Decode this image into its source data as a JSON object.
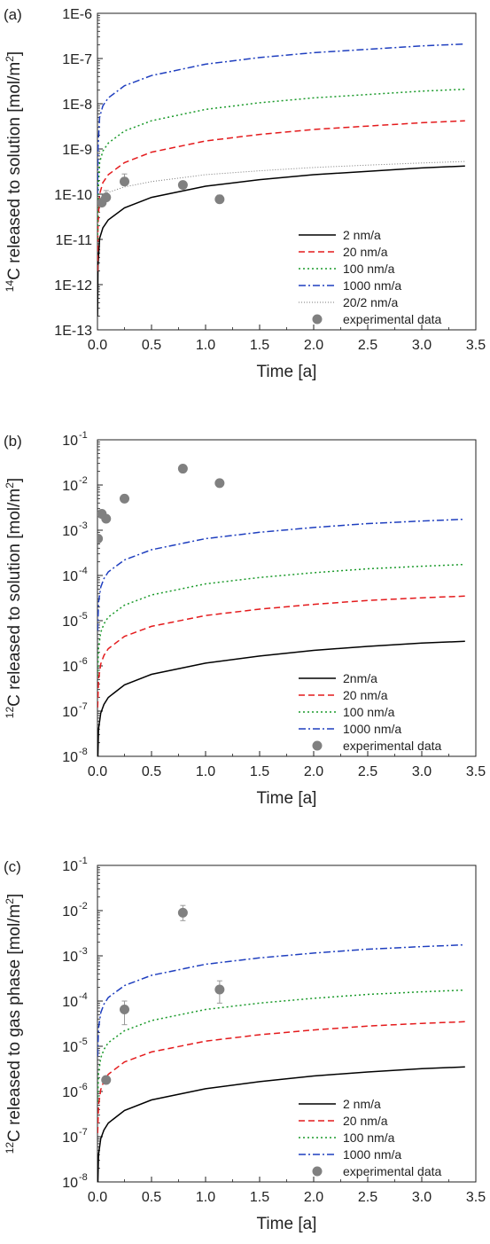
{
  "figure": {
    "panels": [
      "(a)",
      "(b)",
      "(c)"
    ]
  },
  "chart_data": [
    {
      "type": "line",
      "panel_label": "(a)",
      "xlabel": "Time [a]",
      "ylabel_pre": "",
      "ylabel_sup": "14",
      "ylabel_main": "C released to solution [mol/m",
      "ylabel_sup2": "2",
      "ylabel_post": "]",
      "xlim": [
        0,
        3.5
      ],
      "ylim": [
        1e-13,
        1e-06
      ],
      "yscale": "log",
      "tick_style": "E",
      "x_ticks": [
        "0.0",
        "0.5",
        "1.0",
        "1.5",
        "2.0",
        "2.5",
        "3.0",
        "3.5"
      ],
      "y_ticks": [
        "1E-13",
        "1E-12",
        "1E-11",
        "1E-10",
        "1E-9",
        "1E-8",
        "1E-7",
        "1E-6"
      ],
      "legend_position": "lower-right",
      "series": [
        {
          "name": "2 nm/a",
          "color": "#000000",
          "dash": "solid",
          "x": [
            0.001,
            0.005,
            0.02,
            0.05,
            0.1,
            0.25,
            0.5,
            1.0,
            1.5,
            2.0,
            2.5,
            3.0,
            3.4
          ],
          "y": [
            2e-13,
            2.6e-12,
            1.05e-11,
            1.8e-11,
            2.7e-11,
            5e-11,
            8.5e-11,
            1.5e-10,
            2.1e-10,
            2.7e-10,
            3.2e-10,
            3.8e-10,
            4.2e-10
          ]
        },
        {
          "name": "20 nm/a",
          "color": "#e41a1c",
          "dash": "dashed",
          "x": [
            0.001,
            0.005,
            0.02,
            0.05,
            0.1,
            0.25,
            0.5,
            1.0,
            1.5,
            2.0,
            2.5,
            3.0,
            3.4
          ],
          "y": [
            2e-12,
            2e-11,
            1e-10,
            1.8e-10,
            2.7e-10,
            5e-10,
            8.5e-10,
            1.5e-09,
            2.1e-09,
            2.7e-09,
            3.2e-09,
            3.8e-09,
            4.2e-09
          ]
        },
        {
          "name": "100 nm/a",
          "color": "#1a9a2a",
          "dash": "dotted",
          "x": [
            0.001,
            0.005,
            0.02,
            0.05,
            0.1,
            0.25,
            0.5,
            1.0,
            1.5,
            2.0,
            2.5,
            3.0,
            3.4
          ],
          "y": [
            1e-11,
            1e-10,
            5e-10,
            9e-10,
            1.35e-09,
            2.5e-09,
            4.2e-09,
            7.5e-09,
            1.05e-08,
            1.35e-08,
            1.6e-08,
            1.9e-08,
            2.1e-08
          ]
        },
        {
          "name": "1000 nm/a",
          "color": "#1f3fbf",
          "dash": "dashdot",
          "x": [
            0.001,
            0.005,
            0.02,
            0.05,
            0.1,
            0.25,
            0.5,
            1.0,
            1.5,
            2.0,
            2.5,
            3.0,
            3.4
          ],
          "y": [
            1e-10,
            1e-09,
            5e-09,
            9e-09,
            1.35e-08,
            2.5e-08,
            4.2e-08,
            7.5e-08,
            1.05e-07,
            1.35e-07,
            1.6e-07,
            1.9e-07,
            2.1e-07
          ]
        },
        {
          "name": "20/2 nm/a",
          "color": "#777777",
          "dash": "finedot",
          "x": [
            0.005,
            0.02,
            0.05,
            0.1,
            0.25,
            0.5,
            1.0,
            1.5,
            2.0,
            2.5,
            3.0,
            3.4
          ],
          "y": [
            5e-11,
            7.5e-11,
            9.5e-11,
            1.1e-10,
            1.45e-10,
            1.9e-10,
            2.7e-10,
            3.3e-10,
            3.9e-10,
            4.4e-10,
            4.9e-10,
            5.3e-10
          ]
        }
      ],
      "points": {
        "name": "experimental data",
        "color": "#808080",
        "x": [
          0.04,
          0.08,
          0.25,
          0.79,
          1.13
        ],
        "y": [
          6.5e-11,
          8.5e-11,
          1.9e-10,
          1.6e-10,
          7.7e-11
        ],
        "yerr_hi": [
          null,
          1.2e-10,
          2.8e-10,
          null,
          9.5e-11
        ]
      }
    },
    {
      "type": "line",
      "panel_label": "(b)",
      "xlabel": "Time [a]",
      "ylabel_pre": "",
      "ylabel_sup": "12",
      "ylabel_main": "C released to solution [mol/m",
      "ylabel_sup2": "2",
      "ylabel_post": "]",
      "xlim": [
        0,
        3.5
      ],
      "ylim": [
        1e-08,
        0.1
      ],
      "yscale": "log",
      "tick_style": "pow",
      "x_ticks": [
        "0.0",
        "0.5",
        "1.0",
        "1.5",
        "2.0",
        "2.5",
        "3.0",
        "3.5"
      ],
      "y_ticks": [
        "-8",
        "-7",
        "-6",
        "-5",
        "-4",
        "-3",
        "-2",
        "-1"
      ],
      "legend_position": "lower-right",
      "series": [
        {
          "name": "2nm/a",
          "color": "#000000",
          "dash": "solid",
          "x": [
            0.002,
            0.01,
            0.03,
            0.06,
            0.1,
            0.25,
            0.5,
            1.0,
            1.5,
            2.0,
            2.5,
            3.0,
            3.4
          ],
          "y": [
            6e-09,
            4e-08,
            9e-08,
            1.4e-07,
            2e-07,
            3.8e-07,
            6.5e-07,
            1.15e-06,
            1.65e-06,
            2.2e-06,
            2.7e-06,
            3.2e-06,
            3.5e-06
          ]
        },
        {
          "name": "20 nm/a",
          "color": "#e41a1c",
          "dash": "dashed",
          "x": [
            0.002,
            0.01,
            0.03,
            0.06,
            0.1,
            0.25,
            0.5,
            1.0,
            1.5,
            2.0,
            2.5,
            3.0,
            3.4
          ],
          "y": [
            1.2e-07,
            5e-07,
            1.1e-06,
            1.7e-06,
            2.4e-06,
            4.5e-06,
            7.5e-06,
            1.3e-05,
            1.8e-05,
            2.3e-05,
            2.8e-05,
            3.2e-05,
            3.5e-05
          ]
        },
        {
          "name": "100 nm/a",
          "color": "#1a9a2a",
          "dash": "dotted",
          "x": [
            0.002,
            0.01,
            0.03,
            0.06,
            0.1,
            0.25,
            0.5,
            1.0,
            1.5,
            2.0,
            2.5,
            3.0,
            3.4
          ],
          "y": [
            6e-07,
            2.5e-06,
            5.5e-06,
            8.5e-06,
            1.2e-05,
            2.2e-05,
            3.7e-05,
            6.5e-05,
            9e-05,
            0.000115,
            0.00014,
            0.00016,
            0.000175
          ]
        },
        {
          "name": "1000 nm/a",
          "color": "#1f3fbf",
          "dash": "dashdot",
          "x": [
            0.002,
            0.01,
            0.03,
            0.06,
            0.1,
            0.25,
            0.5,
            1.0,
            1.5,
            2.0,
            2.5,
            3.0,
            3.4
          ],
          "y": [
            6e-06,
            2.5e-05,
            5.5e-05,
            8.5e-05,
            0.00012,
            0.00022,
            0.00037,
            0.00065,
            0.0009,
            0.00115,
            0.0014,
            0.0016,
            0.00175
          ]
        }
      ],
      "points": {
        "name": "experimental data",
        "color": "#808080",
        "x": [
          0.005,
          0.04,
          0.08,
          0.25,
          0.79,
          1.13
        ],
        "y": [
          0.00065,
          0.0023,
          0.0018,
          0.005,
          0.023,
          0.011
        ],
        "yerr_hi": [
          null,
          null,
          null,
          null,
          null,
          null
        ]
      }
    },
    {
      "type": "line",
      "panel_label": "(c)",
      "xlabel": "Time [a]",
      "ylabel_pre": "",
      "ylabel_sup": "12",
      "ylabel_main": "C released to gas phase [mol/m",
      "ylabel_sup2": "2",
      "ylabel_post": "]",
      "xlim": [
        0,
        3.5
      ],
      "ylim": [
        1e-08,
        0.1
      ],
      "yscale": "log",
      "tick_style": "pow",
      "x_ticks": [
        "0.0",
        "0.5",
        "1.0",
        "1.5",
        "2.0",
        "2.5",
        "3.0",
        "3.5"
      ],
      "y_ticks": [
        "-8",
        "-7",
        "-6",
        "-5",
        "-4",
        "-3",
        "-2",
        "-1"
      ],
      "legend_position": "lower-right",
      "series": [
        {
          "name": "2 nm/a",
          "color": "#000000",
          "dash": "solid",
          "x": [
            0.002,
            0.01,
            0.03,
            0.06,
            0.1,
            0.25,
            0.5,
            1.0,
            1.5,
            2.0,
            2.5,
            3.0,
            3.4
          ],
          "y": [
            6e-09,
            4e-08,
            9e-08,
            1.4e-07,
            2e-07,
            3.8e-07,
            6.5e-07,
            1.15e-06,
            1.65e-06,
            2.2e-06,
            2.7e-06,
            3.2e-06,
            3.5e-06
          ]
        },
        {
          "name": "20 nm/a",
          "color": "#e41a1c",
          "dash": "dashed",
          "x": [
            0.002,
            0.01,
            0.03,
            0.06,
            0.1,
            0.25,
            0.5,
            1.0,
            1.5,
            2.0,
            2.5,
            3.0,
            3.4
          ],
          "y": [
            1.2e-07,
            5e-07,
            1.1e-06,
            1.7e-06,
            2.4e-06,
            4.5e-06,
            7.5e-06,
            1.3e-05,
            1.8e-05,
            2.3e-05,
            2.8e-05,
            3.2e-05,
            3.5e-05
          ]
        },
        {
          "name": "100 nm/a",
          "color": "#1a9a2a",
          "dash": "dotted",
          "x": [
            0.002,
            0.01,
            0.03,
            0.06,
            0.1,
            0.25,
            0.5,
            1.0,
            1.5,
            2.0,
            2.5,
            3.0,
            3.4
          ],
          "y": [
            6e-07,
            2.5e-06,
            5.5e-06,
            8.5e-06,
            1.2e-05,
            2.2e-05,
            3.7e-05,
            6.5e-05,
            9e-05,
            0.000115,
            0.00014,
            0.00016,
            0.000175
          ]
        },
        {
          "name": "1000 nm/a",
          "color": "#1f3fbf",
          "dash": "dashdot",
          "x": [
            0.002,
            0.01,
            0.03,
            0.06,
            0.1,
            0.25,
            0.5,
            1.0,
            1.5,
            2.0,
            2.5,
            3.0,
            3.4
          ],
          "y": [
            6e-06,
            2.5e-05,
            5.5e-05,
            8.5e-05,
            0.00012,
            0.00022,
            0.00037,
            0.00065,
            0.0009,
            0.00115,
            0.0014,
            0.0016,
            0.00175
          ]
        }
      ],
      "points": {
        "name": "experimental data",
        "color": "#808080",
        "x": [
          0.08,
          0.25,
          0.79,
          1.13
        ],
        "y": [
          1.8e-06,
          6.5e-05,
          0.009,
          0.00018
        ],
        "yerr_lo": [
          null,
          3e-05,
          0.006,
          9e-05
        ],
        "yerr_hi": [
          null,
          0.0001,
          0.013,
          0.00028
        ]
      }
    }
  ]
}
